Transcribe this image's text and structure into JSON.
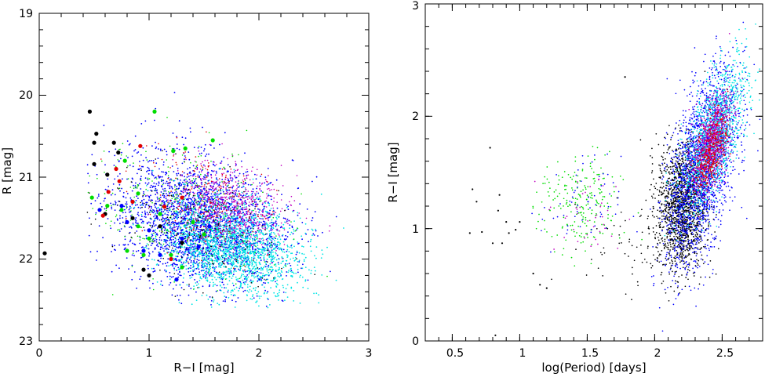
{
  "colors": {
    "black": "#000000",
    "red": "#e00000",
    "green": "#00dd00",
    "blue": "#0000ff",
    "cyan": "#00e5e5",
    "magenta": "#c000c0"
  },
  "chart_data": [
    {
      "type": "scatter",
      "xlabel": "R−I [mag]",
      "ylabel": "R [mag]",
      "xlim": [
        0,
        3
      ],
      "ylim": [
        23,
        19
      ],
      "y_inverted": true,
      "xticks": [
        "0",
        "1",
        "2",
        "3"
      ],
      "yticks": [
        "19",
        "20",
        "21",
        "22",
        "23"
      ],
      "grid": false,
      "series": [
        {
          "color": "black",
          "points": [
            [
              0.05,
              21.93
            ],
            [
              0.46,
              20.2
            ],
            [
              0.5,
              20.58
            ],
            [
              0.52,
              20.47
            ],
            [
              0.5,
              20.84
            ],
            [
              0.68,
              20.58
            ],
            [
              0.72,
              20.7
            ],
            [
              0.62,
              20.97
            ],
            [
              0.95,
              22.13
            ],
            [
              1.0,
              22.2
            ],
            [
              0.85,
              21.5
            ],
            [
              0.6,
              21.45
            ],
            [
              1.3,
              21.8
            ],
            [
              1.1,
              21.6
            ]
          ]
        },
        {
          "color": "red",
          "points": [
            [
              0.7,
              20.9
            ],
            [
              0.73,
              21.05
            ],
            [
              0.92,
              20.62
            ],
            [
              0.58,
              21.47
            ],
            [
              0.63,
              21.18
            ],
            [
              1.14,
              21.36
            ],
            [
              0.85,
              21.3
            ],
            [
              1.2,
              22.0
            ],
            [
              1.3,
              21.25
            ]
          ]
        },
        {
          "color": "green",
          "points": [
            [
              1.05,
              20.2
            ],
            [
              1.22,
              20.68
            ],
            [
              1.33,
              20.65
            ],
            [
              1.58,
              20.55
            ],
            [
              0.78,
              20.8
            ],
            [
              0.48,
              21.25
            ],
            [
              0.62,
              21.35
            ],
            [
              0.9,
              21.6
            ],
            [
              1.0,
              21.75
            ],
            [
              0.8,
              21.9
            ],
            [
              1.1,
              21.45
            ],
            [
              1.2,
              21.95
            ],
            [
              1.4,
              21.55
            ],
            [
              0.75,
              21.4
            ],
            [
              0.9,
              21.2
            ],
            [
              1.5,
              21.7
            ],
            [
              1.3,
              22.1
            ],
            [
              0.95,
              21.95
            ]
          ]
        },
        {
          "color": "blue",
          "points": [
            [
              0.55,
              21.4
            ],
            [
              0.8,
              21.55
            ],
            [
              1.0,
              21.65
            ],
            [
              1.1,
              21.95
            ],
            [
              0.95,
              21.9
            ],
            [
              1.25,
              22.25
            ],
            [
              1.3,
              21.75
            ],
            [
              1.45,
              21.85
            ],
            [
              1.55,
              21.6
            ],
            [
              0.75,
              21.35
            ]
          ]
        }
      ]
    },
    {
      "type": "scatter",
      "xlabel": "log(Period) [days]",
      "ylabel": "R−I [mag]",
      "xlim": [
        0.3,
        2.8
      ],
      "ylim": [
        0,
        3
      ],
      "xticks": [
        "0.5",
        "1",
        "1.5",
        "2",
        "2.5"
      ],
      "yticks": [
        "0",
        "1",
        "2",
        "3"
      ],
      "grid": false,
      "series": [
        {
          "color": "black",
          "points": [
            [
              0.63,
              0.96
            ],
            [
              0.65,
              1.35
            ],
            [
              0.68,
              1.24
            ],
            [
              0.72,
              0.97
            ],
            [
              0.78,
              1.72
            ],
            [
              0.8,
              0.87
            ],
            [
              0.84,
              1.16
            ],
            [
              0.87,
              0.87
            ],
            [
              0.85,
              1.3
            ],
            [
              0.9,
              1.06
            ],
            [
              0.92,
              0.96
            ],
            [
              0.97,
              0.99
            ],
            [
              1.0,
              1.06
            ],
            [
              0.82,
              0.05
            ],
            [
              1.1,
              0.6
            ],
            [
              1.15,
              0.5
            ],
            [
              1.2,
              0.47
            ],
            [
              1.78,
              2.35
            ]
          ]
        }
      ]
    }
  ]
}
